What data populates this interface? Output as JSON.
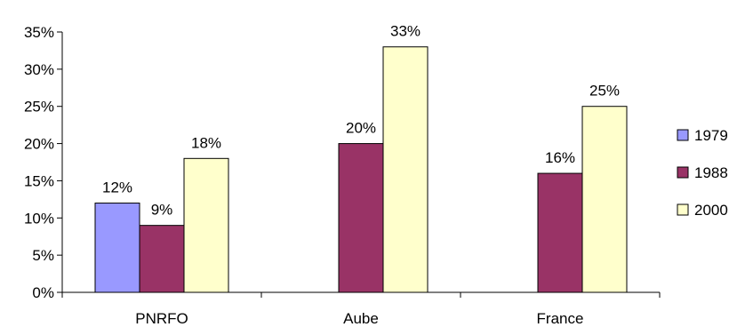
{
  "chart_data": {
    "type": "bar",
    "categories": [
      "PNRFO",
      "Aube",
      "France"
    ],
    "series": [
      {
        "name": "1979",
        "values": [
          12,
          null,
          null
        ],
        "labels": [
          "12%",
          "",
          ""
        ],
        "color": "#9999ff"
      },
      {
        "name": "1988",
        "values": [
          9,
          20,
          16
        ],
        "labels": [
          "9%",
          "20%",
          "16%"
        ],
        "color": "#993366"
      },
      {
        "name": "2000",
        "values": [
          18,
          33,
          25
        ],
        "labels": [
          "18%",
          "33%",
          "25%"
        ],
        "color": "#ffffcc"
      }
    ],
    "y_ticks": [
      "0%",
      "5%",
      "10%",
      "15%",
      "20%",
      "25%",
      "30%",
      "35%"
    ],
    "ylim": [
      0,
      35
    ],
    "title": "",
    "xlabel": "",
    "ylabel": "",
    "grid": false,
    "legend": "right"
  }
}
